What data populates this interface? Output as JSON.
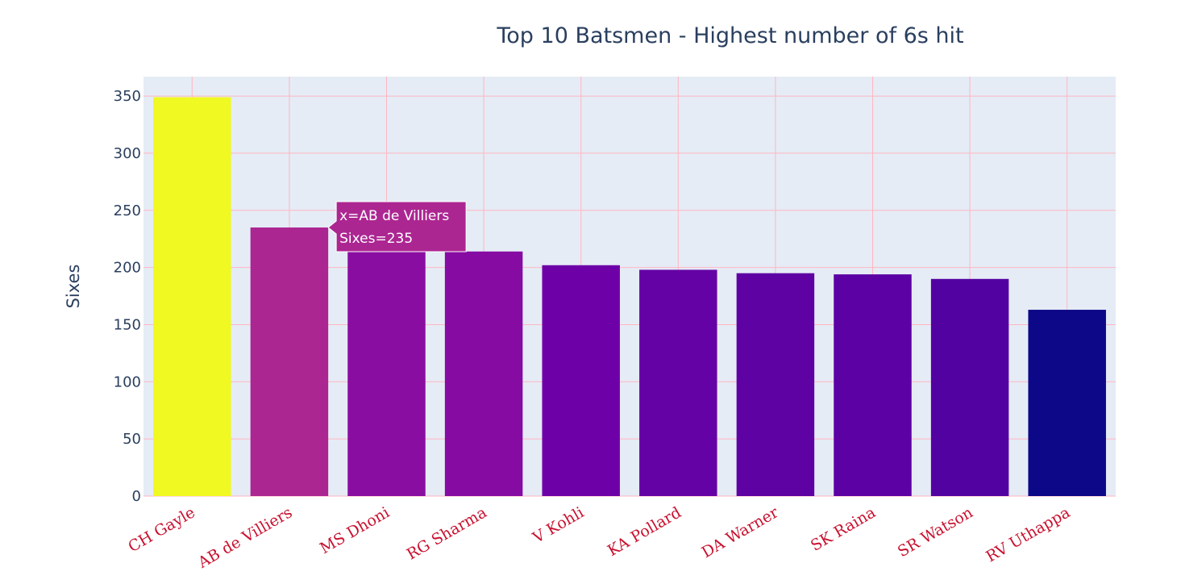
{
  "chart_data": {
    "type": "bar",
    "title": "Top 10 Batsmen - Highest number of 6s hit",
    "xlabel": "",
    "ylabel": "Sixes",
    "categories": [
      "CH Gayle",
      "AB de Villiers",
      "MS Dhoni",
      "RG Sharma",
      "V Kohli",
      "KA Pollard",
      "DA Warner",
      "SK Raina",
      "SR Watson",
      "RV Uthappa"
    ],
    "values": [
      349,
      235,
      216,
      214,
      202,
      198,
      195,
      194,
      190,
      163
    ],
    "ylim": [
      0,
      367
    ],
    "yticks": [
      0,
      50,
      100,
      150,
      200,
      250,
      300,
      350
    ],
    "grid": true,
    "legend": "none",
    "colorscale": "plasma"
  },
  "tooltip": {
    "category_index": 1,
    "line1": "x=AB de Villiers",
    "line2": "Sixes=235"
  },
  "colors": {
    "plot_bg": "#e5ecf6",
    "grid": "#ffb6c1",
    "axis_text": "#2a3f5f",
    "xtick_text": "#c8102e",
    "scale_low": "#0d0887",
    "scale_high": "#f0f921"
  }
}
